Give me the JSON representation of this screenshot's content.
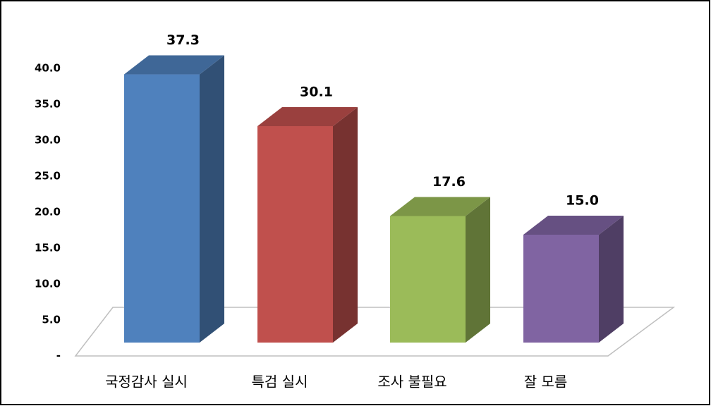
{
  "chart_data": {
    "type": "bar3d",
    "categories": [
      "국정감사 실시",
      "특검 실시",
      "조사 불필요",
      "잘 모름"
    ],
    "values": [
      37.3,
      30.1,
      17.6,
      15.0
    ],
    "value_labels": [
      "37.3",
      "30.1",
      "17.6",
      "15.0"
    ],
    "colors": [
      "#4f81bd",
      "#c0504d",
      "#9bbb59",
      "#8064a2"
    ],
    "ylim": [
      0,
      40
    ],
    "yticks": [
      {
        "value": 0,
        "label": "-"
      },
      {
        "value": 5,
        "label": "5.0"
      },
      {
        "value": 10,
        "label": "10.0"
      },
      {
        "value": 15,
        "label": "15.0"
      },
      {
        "value": 20,
        "label": "20.0"
      },
      {
        "value": 25,
        "label": "25.0"
      },
      {
        "value": 30,
        "label": "30.0"
      },
      {
        "value": 35,
        "label": "35.0"
      },
      {
        "value": 40,
        "label": "40.0"
      }
    ]
  }
}
